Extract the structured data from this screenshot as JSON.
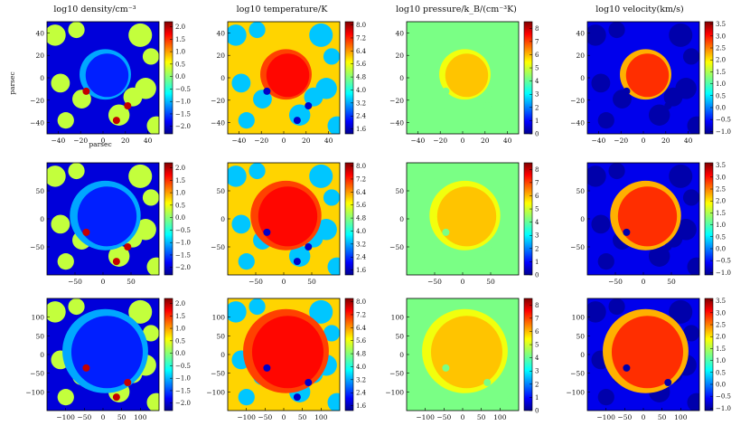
{
  "figure": {
    "row_axis_label": "parsec",
    "col_axis_label": "parsec"
  },
  "chart_data": {
    "type": "heatmap",
    "layout": "3 rows x 4 columns of colour maps",
    "columns": [
      {
        "title": "log10 density/cm⁻³",
        "quantity": "density",
        "cbar_ticks": [
          "2.0",
          "1.5",
          "1.0",
          "0.5",
          "0.0",
          "−0.5",
          "−1.0",
          "−1.5",
          "−2.0"
        ],
        "clim": [
          -2.3,
          2.2
        ]
      },
      {
        "title": "log10 temperature/K",
        "quantity": "temperature",
        "cbar_ticks": [
          "8.0",
          "7.2",
          "6.4",
          "5.6",
          "4.8",
          "4.0",
          "3.2",
          "2.4",
          "1.6"
        ],
        "clim": [
          1.3,
          8.2
        ]
      },
      {
        "title": "log10 pressure/k_B/(cm⁻³K)",
        "quantity": "pressure",
        "cbar_ticks": [
          "8",
          "7",
          "6",
          "5",
          "4",
          "3",
          "2",
          "1",
          "0"
        ],
        "clim": [
          0,
          8.5
        ]
      },
      {
        "title": "log10 velocity(km/s)",
        "quantity": "velocity",
        "cbar_ticks": [
          "3.5",
          "3.0",
          "2.5",
          "2.0",
          "1.5",
          "1.0",
          "0.5",
          "0.0",
          "−0.5",
          "−1.0"
        ],
        "clim": [
          -1.1,
          3.6
        ]
      }
    ],
    "rows": [
      {
        "extent": [
          -50,
          50
        ],
        "xticks": [
          "−40",
          "−20",
          "0",
          "20",
          "40"
        ],
        "xvals": [
          -40,
          -20,
          0,
          20,
          40
        ],
        "yticks": [
          "40",
          "20",
          "0",
          "−20",
          "−40"
        ],
        "yvals": [
          40,
          20,
          0,
          -20,
          -40
        ]
      },
      {
        "extent": [
          -100,
          100
        ],
        "xticks": [
          "−50",
          "0",
          "50"
        ],
        "xvals": [
          -50,
          0,
          50
        ],
        "yticks": [
          "50",
          "0",
          "−50"
        ],
        "yvals": [
          50,
          0,
          -50
        ]
      },
      {
        "extent": [
          -150,
          150
        ],
        "xticks": [
          "−100",
          "−50",
          "0",
          "50",
          "100"
        ],
        "xvals": [
          -100,
          -50,
          0,
          50,
          100
        ],
        "yticks": [
          "100",
          "50",
          "0",
          "−50",
          "−100"
        ],
        "yvals": [
          100,
          50,
          0,
          -50,
          -100
        ]
      }
    ],
    "colormap": "jet",
    "clumps": [
      {
        "x": -45,
        "y": 40,
        "r": 9
      },
      {
        "x": -25,
        "y": 45,
        "r": 7
      },
      {
        "x": -40,
        "y": -5,
        "r": 8
      },
      {
        "x": -20,
        "y": -20,
        "r": 8
      },
      {
        "x": 35,
        "y": 40,
        "r": 10
      },
      {
        "x": 40,
        "y": -10,
        "r": 9
      },
      {
        "x": 28,
        "y": -18,
        "r": 8
      },
      {
        "x": 15,
        "y": -35,
        "r": 9
      },
      {
        "x": -35,
        "y": -40,
        "r": 7
      },
      {
        "x": 45,
        "y": 20,
        "r": 7
      },
      {
        "x": 50,
        "y": -45,
        "r": 8
      }
    ],
    "cavity_radius_fraction": [
      0.45,
      0.62,
      0.75
    ]
  }
}
